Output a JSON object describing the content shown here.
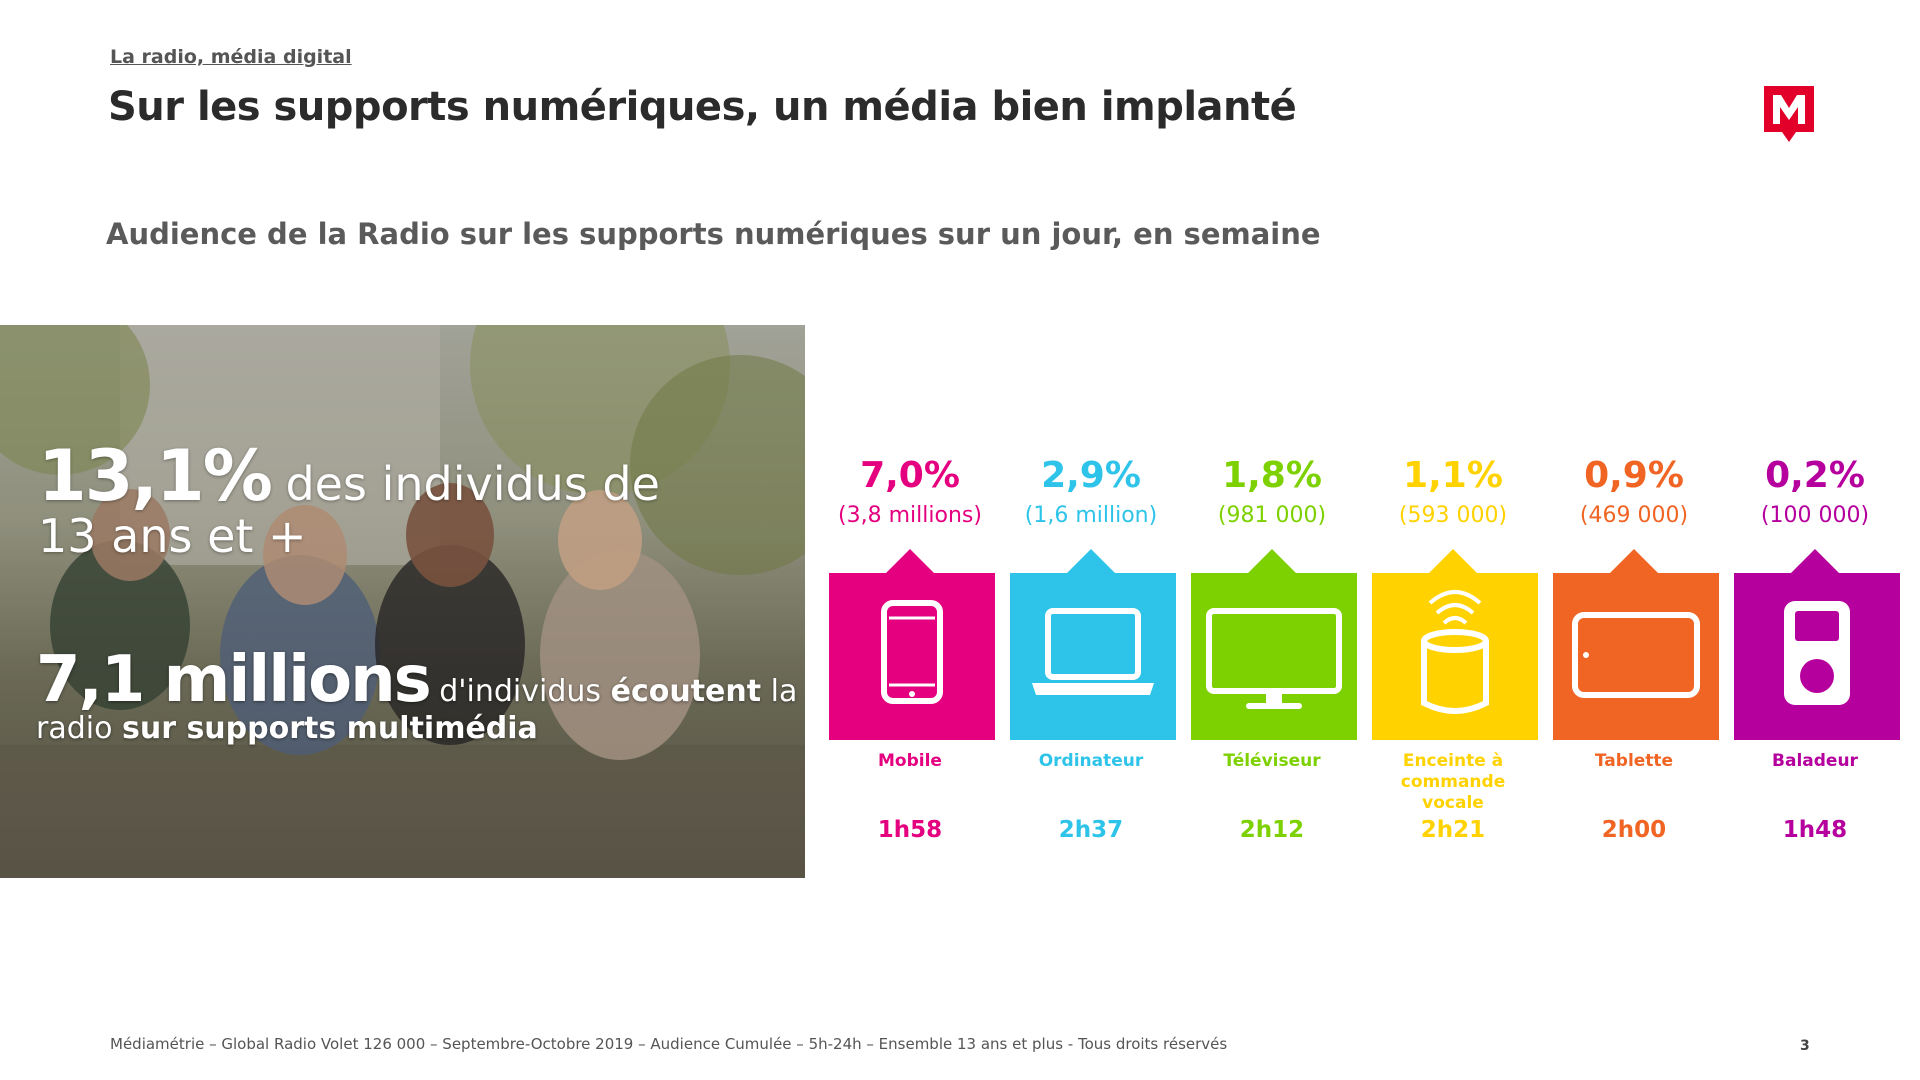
{
  "header": {
    "kicker": "La radio, média digital",
    "title": "Sur les supports numériques, un média bien implanté",
    "subtitle": "Audience de la Radio sur les supports numériques sur un jour, en semaine"
  },
  "logo": {
    "letter": "M",
    "color": "#e2002b",
    "icon": "mediametrie-logo"
  },
  "photo_panel": {
    "stat1_big": "13,1%",
    "stat1_rest": " des individus de",
    "stat1_line2": "13 ans et +",
    "stat2_big": "7,1 millions",
    "stat2_a": " d'individus ",
    "stat2_b": "écoutent",
    "stat2_c": " la",
    "stat2_line2_a": "radio ",
    "stat2_line2_b": "sur supports multimédia"
  },
  "devices": [
    {
      "pct": "7,0%",
      "abs": "(3,8 millions)",
      "label": "Mobile",
      "duration": "1h58",
      "color": "#e4007f",
      "icon": "mobile-icon"
    },
    {
      "pct": "2,9%",
      "abs": "(1,6 million)",
      "label": "Ordinateur",
      "duration": "2h37",
      "color": "#2ec4ea",
      "icon": "laptop-icon"
    },
    {
      "pct": "1,8%",
      "abs": "(981 000)",
      "label": "Téléviseur",
      "duration": "2h12",
      "color": "#7ed100",
      "icon": "tv-icon"
    },
    {
      "pct": "1,1%",
      "abs": "(593 000)",
      "label": "Enceinte à commande vocale",
      "duration": "2h21",
      "color": "#ffd200",
      "icon": "smart-speaker-icon"
    },
    {
      "pct": "0,9%",
      "abs": "(469 000)",
      "label": "Tablette",
      "duration": "2h00",
      "color": "#f06424",
      "icon": "tablet-icon"
    },
    {
      "pct": "0,2%",
      "abs": "(100 000)",
      "label": "Baladeur",
      "duration": "1h48",
      "color": "#b5009e",
      "icon": "music-player-icon"
    }
  ],
  "footer": {
    "source": "Médiamétrie – Global Radio Volet 126 000 – Septembre-Octobre 2019 – Audience Cumulée – 5h-24h – Ensemble 13 ans et plus - Tous droits réservés",
    "page": "3"
  }
}
